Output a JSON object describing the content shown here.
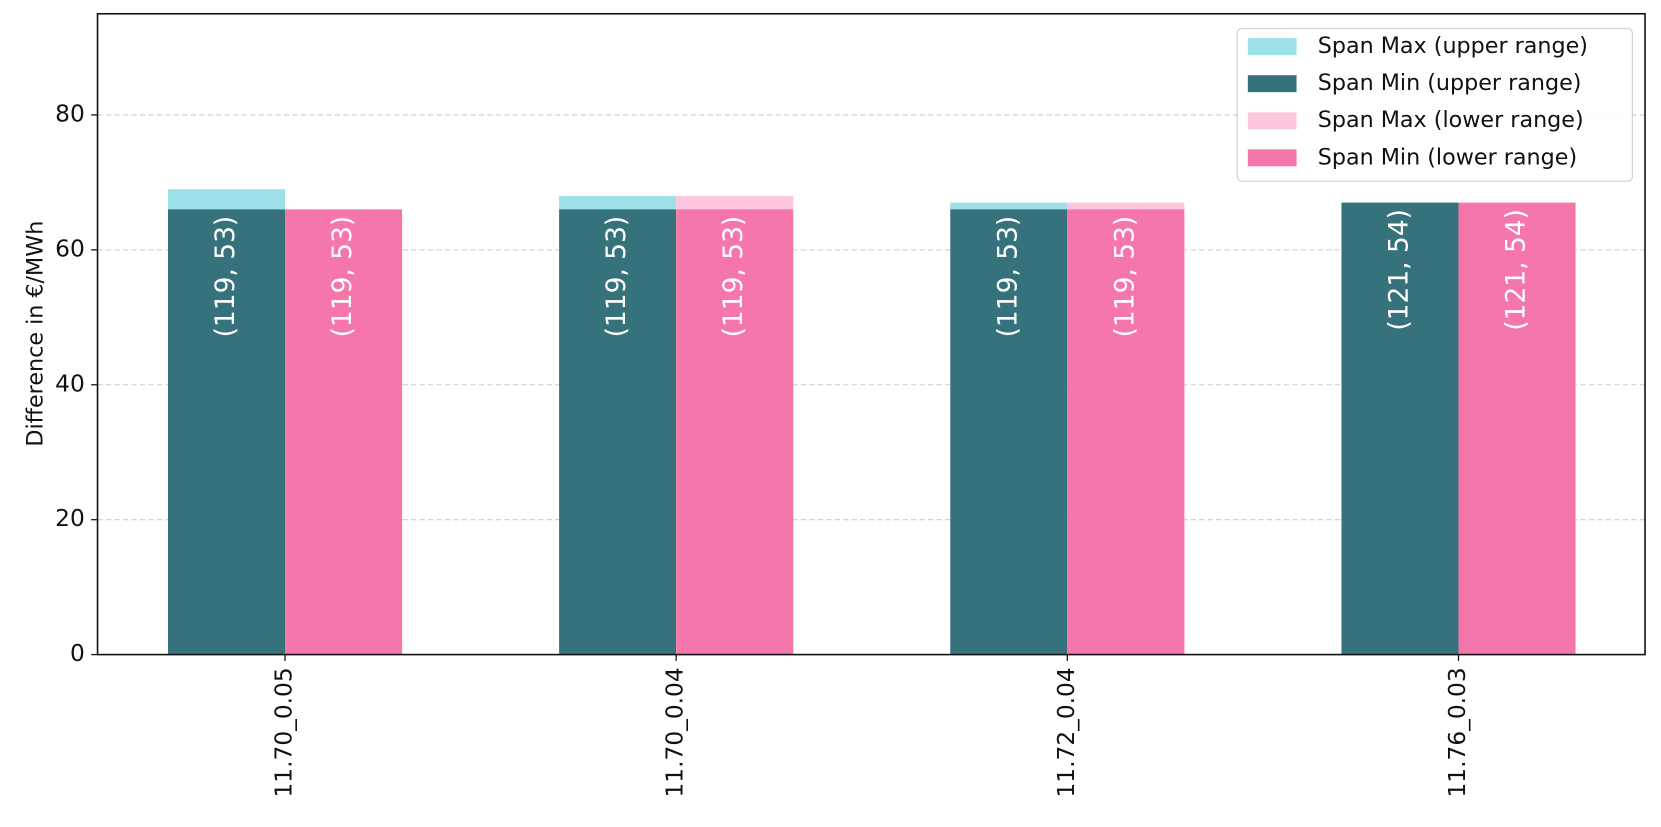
{
  "chart_data": {
    "type": "bar",
    "ylabel": "Difference in €/MWh",
    "categories": [
      "11.70_0.05",
      "11.70_0.04",
      "11.72_0.04",
      "11.76_0.03"
    ],
    "series": [
      {
        "name": "Span Max (upper range)",
        "color": "#9de0e8",
        "values": [
          69,
          68,
          67,
          67
        ]
      },
      {
        "name": "Span Min (upper range)",
        "color": "#35727b",
        "values": [
          66,
          66,
          66,
          67
        ],
        "labels": [
          "(119, 53)",
          "(119, 53)",
          "(119, 53)",
          "(121, 54)"
        ]
      },
      {
        "name": "Span Max (lower range)",
        "color": "#fdc6de",
        "values": [
          66,
          68,
          67,
          67
        ]
      },
      {
        "name": "Span Min (lower range)",
        "color": "#f576ab",
        "values": [
          66,
          66,
          66,
          67
        ],
        "labels": [
          "(119, 53)",
          "(119, 53)",
          "(119, 53)",
          "(121, 54)"
        ]
      }
    ],
    "ylim": [
      0,
      95
    ],
    "yticks": [
      0,
      20,
      40,
      60,
      80
    ],
    "grid": true,
    "legend": "upper right"
  }
}
